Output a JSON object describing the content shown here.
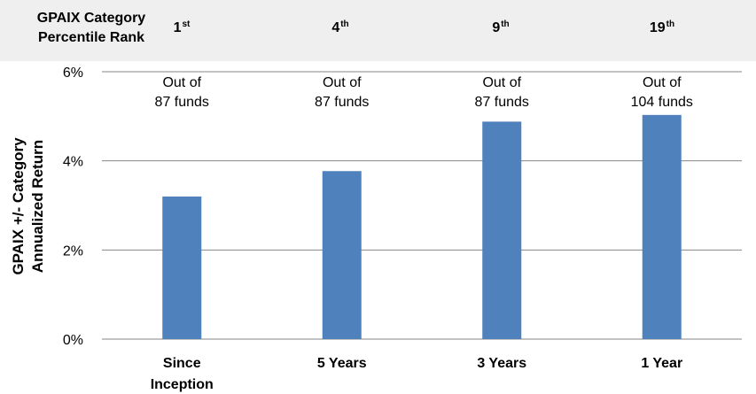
{
  "rank_header": {
    "title_line1": "GPAIX Category",
    "title_line2": "Percentile Rank",
    "ranks": [
      {
        "num": "1",
        "suffix": "st"
      },
      {
        "num": "4",
        "suffix": "th"
      },
      {
        "num": "9",
        "suffix": "th"
      },
      {
        "num": "19",
        "suffix": "th"
      }
    ]
  },
  "chart_data": {
    "type": "bar",
    "categories": [
      "Since Inception",
      "5 Years",
      "3 Years",
      "1 Year"
    ],
    "category_lines": [
      [
        "Since",
        "Inception"
      ],
      [
        "5 Years"
      ],
      [
        "3 Years"
      ],
      [
        "1 Year"
      ]
    ],
    "values": [
      3.2,
      3.77,
      4.88,
      5.03
    ],
    "annotations": [
      [
        "Out of",
        "87 funds"
      ],
      [
        "Out of",
        "87 funds"
      ],
      [
        "Out of",
        "87 funds"
      ],
      [
        "Out of",
        "104 funds"
      ]
    ],
    "ylabel_lines": [
      "GPAIX +/- Category",
      "Annualized Return"
    ],
    "ylim": [
      0,
      6
    ],
    "yticks": [
      0,
      2,
      4,
      6
    ],
    "ytick_labels": [
      "0%",
      "2%",
      "4%",
      "6%"
    ],
    "grid": true,
    "bar_color": "#4f81bd",
    "grid_color": "#868686"
  }
}
